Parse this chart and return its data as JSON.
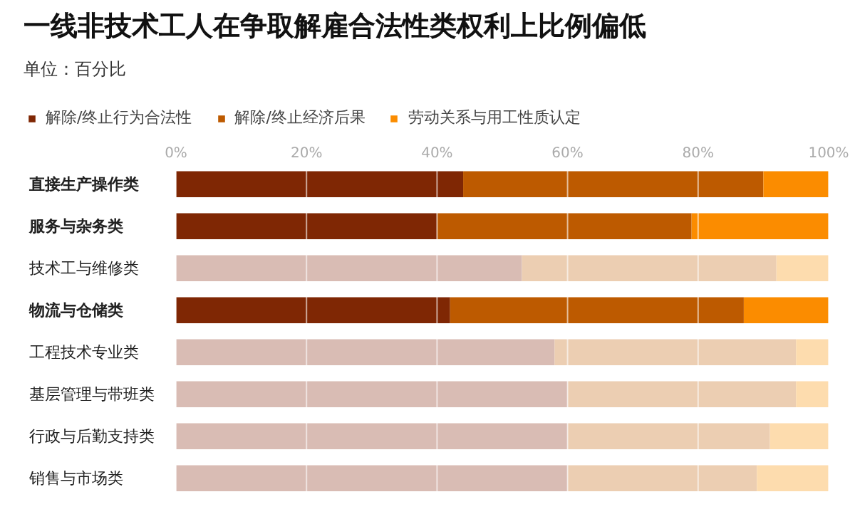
{
  "chart_data": {
    "type": "bar",
    "orientation": "horizontal",
    "stacked": true,
    "title": "一线非技术工人在争取解雇合法性类权利上比例偏低",
    "subtitle": "单位：百分比",
    "categories": [
      "直接生产操作类",
      "服务与杂务类",
      "技术工与维修类",
      "物流与仓储类",
      "工程技术专业类",
      "基层管理与带班类",
      "行政与后勤支持类",
      "销售与市场类"
    ],
    "series": [
      {
        "name": "解除/终止行为合法性",
        "color": "#7f2704",
        "colors": [
          "#7f2704",
          "#7f2704",
          "#d9bcb4",
          "#7f2704",
          "#d9bcb4",
          "#d9bcb4",
          "#d9bcb4",
          "#d9bcb4"
        ],
        "values": [
          44,
          40,
          53,
          42,
          58,
          60,
          60,
          60
        ]
      },
      {
        "name": "解除/终止经济后果",
        "color": "#bd5a00",
        "colors": [
          "#bd5a00",
          "#bd5a00",
          "#ecceb2",
          "#bd5a00",
          "#ecceb2",
          "#ecceb2",
          "#ecceb2",
          "#ecceb2"
        ],
        "values": [
          46,
          39,
          39,
          45,
          37,
          35,
          31,
          29
        ]
      },
      {
        "name": "劳动关系与用工性质认定",
        "color": "#fb8c00",
        "colors": [
          "#fb8c00",
          "#fb8c00",
          "#fddcae",
          "#fb8c00",
          "#fddcae",
          "#fddcae",
          "#fddcae",
          "#fddcae"
        ],
        "values": [
          10,
          21,
          8,
          13,
          5,
          5,
          9,
          11
        ]
      }
    ],
    "xlim": [
      0,
      100
    ],
    "xticks": [
      {
        "value": 0,
        "label": "0%"
      },
      {
        "value": 20,
        "label": "20%"
      },
      {
        "value": 40,
        "label": "40%"
      },
      {
        "value": 60,
        "label": "60%"
      },
      {
        "value": 80,
        "label": "80%"
      },
      {
        "value": 100,
        "label": "100%"
      }
    ],
    "grid": "x",
    "legend": "top"
  }
}
